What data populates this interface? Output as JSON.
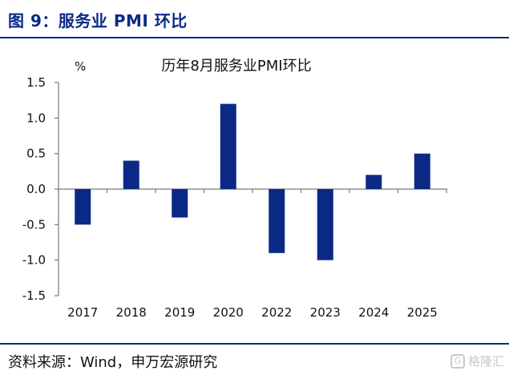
{
  "figure": {
    "title": "图 9：服务业 PMI 环比",
    "source": "资料来源：Wind，申万宏源研究",
    "watermark": "格隆汇"
  },
  "chart_data": {
    "type": "bar",
    "title": "历年8月服务业PMI环比",
    "ylabel": "%",
    "xlabel": "",
    "categories": [
      "2017",
      "2018",
      "2019",
      "2020",
      "2022",
      "2023",
      "2024",
      "2025"
    ],
    "values": [
      -0.5,
      0.4,
      -0.4,
      1.2,
      -0.9,
      -1.0,
      0.2,
      0.5
    ],
    "ylim": [
      -1.5,
      1.5
    ],
    "yticks": [
      "1.5",
      "1.0",
      "0.5",
      "0.0",
      "-0.5",
      "-1.0",
      "-1.5"
    ],
    "bar_color": "#0b2a86",
    "grid": false,
    "legend": "none"
  }
}
